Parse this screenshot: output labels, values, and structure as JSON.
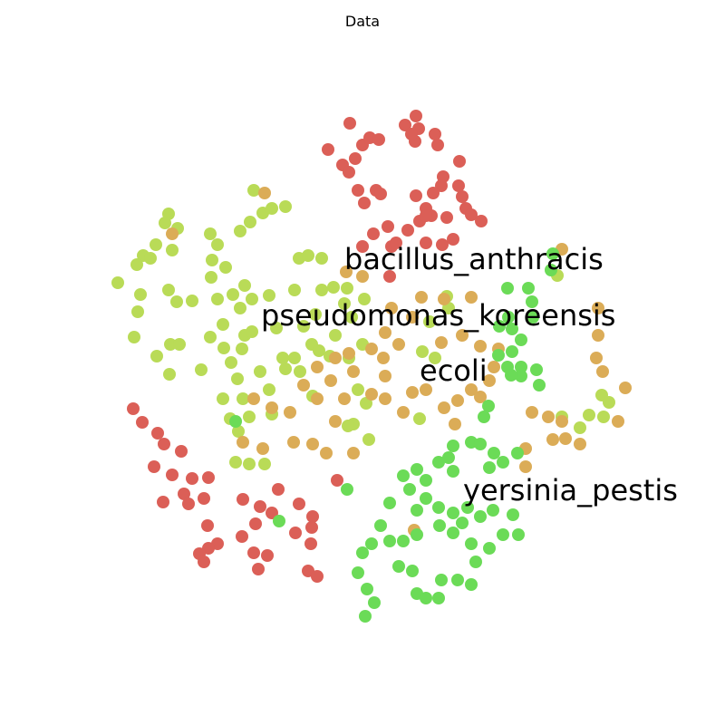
{
  "chart_data": {
    "type": "scatter",
    "title": "Data",
    "xlabel": "",
    "ylabel": "",
    "axes_visible": false,
    "grid": false,
    "annotations": [
      {
        "text": "bacillus_anthracis",
        "x": 380,
        "y": 288
      },
      {
        "text": "pseudomonas_koreensis",
        "x": 288,
        "y": 350
      },
      {
        "text": "ecoli",
        "x": 463,
        "y": 411
      },
      {
        "text": "yersinia_pestis",
        "x": 511,
        "y": 543
      }
    ],
    "series": [
      {
        "color": "#db5f57",
        "points": [
          [
            386,
            136
          ],
          [
            400,
            160
          ],
          [
            362,
            165
          ],
          [
            378,
            182
          ],
          [
            385,
            190
          ],
          [
            392,
            175
          ],
          [
            408,
            152
          ],
          [
            418,
            154
          ],
          [
            447,
            138
          ],
          [
            459,
            128
          ],
          [
            462,
            142
          ],
          [
            480,
            148
          ],
          [
            483,
            160
          ],
          [
            458,
            156
          ],
          [
            454,
            148
          ],
          [
            489,
            195
          ],
          [
            487,
            205
          ],
          [
            507,
            178
          ],
          [
            506,
            205
          ],
          [
            510,
            217
          ],
          [
            478,
            213
          ],
          [
            470,
            230
          ],
          [
            476,
            238
          ],
          [
            459,
            216
          ],
          [
            463,
            244
          ],
          [
            493,
            240
          ],
          [
            514,
            230
          ],
          [
            520,
            237
          ],
          [
            531,
            244
          ],
          [
            415,
            210
          ],
          [
            395,
            210
          ],
          [
            402,
            224
          ],
          [
            420,
            214
          ],
          [
            428,
            250
          ],
          [
            412,
            258
          ],
          [
            400,
            272
          ],
          [
            432,
            272
          ],
          [
            450,
            254
          ],
          [
            470,
            238
          ],
          [
            488,
            270
          ],
          [
            500,
            264
          ],
          [
            470,
            268
          ],
          [
            437,
            268
          ],
          [
            430,
            305
          ],
          [
            147,
            451
          ],
          [
            157,
            466
          ],
          [
            174,
            478
          ],
          [
            181,
            490
          ],
          [
            170,
            515
          ],
          [
            200,
            498
          ],
          [
            190,
            524
          ],
          [
            212,
            528
          ],
          [
            230,
            527
          ],
          [
            203,
            545
          ],
          [
            208,
            556
          ],
          [
            225,
            550
          ],
          [
            180,
            554
          ],
          [
            268,
            551
          ],
          [
            287,
            559
          ],
          [
            307,
            540
          ],
          [
            282,
            578
          ],
          [
            300,
            566
          ],
          [
            330,
            556
          ],
          [
            345,
            570
          ],
          [
            344,
            582
          ],
          [
            326,
            588
          ],
          [
            229,
            580
          ],
          [
            240,
            600
          ],
          [
            230,
            605
          ],
          [
            220,
            611
          ],
          [
            225,
            620
          ],
          [
            267,
            592
          ],
          [
            280,
            610
          ],
          [
            285,
            628
          ],
          [
            295,
            613
          ],
          [
            343,
            600
          ],
          [
            340,
            630
          ],
          [
            350,
            636
          ],
          [
            372,
            530
          ]
        ]
      },
      {
        "color": "#b9db57",
        "points": [
          [
            186,
            236
          ],
          [
            182,
            246
          ],
          [
            196,
            252
          ],
          [
            172,
            270
          ],
          [
            158,
            282
          ],
          [
            166,
            285
          ],
          [
            190,
            276
          ],
          [
            130,
            312
          ],
          [
            151,
            292
          ],
          [
            155,
            325
          ],
          [
            152,
            344
          ],
          [
            148,
            372
          ],
          [
            186,
            320
          ],
          [
            195,
            333
          ],
          [
            212,
            332
          ],
          [
            188,
            380
          ],
          [
            173,
            393
          ],
          [
            198,
            380
          ],
          [
            187,
            413
          ],
          [
            222,
            408
          ],
          [
            232,
            258
          ],
          [
            240,
            270
          ],
          [
            234,
            287
          ],
          [
            233,
            306
          ],
          [
            249,
            295
          ],
          [
            240,
            330
          ],
          [
            257,
            325
          ],
          [
            270,
            315
          ],
          [
            265,
            340
          ],
          [
            278,
            330
          ],
          [
            297,
            326
          ],
          [
            246,
            358
          ],
          [
            232,
            372
          ],
          [
            247,
            384
          ],
          [
            255,
            400
          ],
          [
            267,
            385
          ],
          [
            270,
            370
          ],
          [
            278,
            366
          ],
          [
            305,
            362
          ],
          [
            280,
            210
          ],
          [
            290,
            235
          ],
          [
            300,
            230
          ],
          [
            315,
            228
          ],
          [
            276,
            245
          ],
          [
            265,
            255
          ],
          [
            330,
            285
          ],
          [
            340,
            282
          ],
          [
            355,
            285
          ],
          [
            325,
            320
          ],
          [
            355,
            320
          ],
          [
            368,
            317
          ],
          [
            383,
            318
          ],
          [
            380,
            335
          ],
          [
            402,
            330
          ],
          [
            348,
            347
          ],
          [
            335,
            360
          ],
          [
            344,
            380
          ],
          [
            352,
            387
          ],
          [
            325,
            395
          ],
          [
            315,
            407
          ],
          [
            287,
            410
          ],
          [
            262,
            418
          ],
          [
            297,
            430
          ],
          [
            268,
            440
          ],
          [
            246,
            440
          ],
          [
            300,
            457
          ],
          [
            275,
            460
          ],
          [
            254,
            462
          ],
          [
            263,
            476
          ],
          [
            260,
            510
          ],
          [
            275,
            512
          ],
          [
            292,
            512
          ],
          [
            312,
            395
          ],
          [
            331,
            410
          ],
          [
            345,
            437
          ],
          [
            395,
            430
          ],
          [
            404,
            445
          ],
          [
            407,
            485
          ],
          [
            390,
            468
          ],
          [
            400,
            380
          ],
          [
            385,
            395
          ],
          [
            388,
            350
          ],
          [
            370,
            370
          ],
          [
            364,
            393
          ],
          [
            384,
            470
          ],
          [
            493,
            327
          ],
          [
            495,
            340
          ],
          [
            474,
            355
          ],
          [
            466,
            388
          ],
          [
            480,
            395
          ],
          [
            463,
            462
          ],
          [
            615,
            304
          ],
          [
            620,
            460
          ],
          [
            640,
            472
          ],
          [
            650,
            458
          ],
          [
            664,
            436
          ],
          [
            666,
            460
          ],
          [
            672,
            444
          ]
        ]
      },
      {
        "color": "#dbac57",
        "points": [
          [
            292,
            213
          ],
          [
            190,
            258
          ],
          [
            382,
            300
          ],
          [
            400,
            305
          ],
          [
            465,
            328
          ],
          [
            490,
            330
          ],
          [
            520,
            328
          ],
          [
            432,
            340
          ],
          [
            455,
            350
          ],
          [
            425,
            367
          ],
          [
            440,
            380
          ],
          [
            410,
            385
          ],
          [
            385,
            390
          ],
          [
            370,
            395
          ],
          [
            350,
            405
          ],
          [
            335,
            425
          ],
          [
            350,
            440
          ],
          [
            365,
            420
          ],
          [
            380,
            440
          ],
          [
            410,
            435
          ],
          [
            425,
            440
          ],
          [
            445,
            455
          ],
          [
            455,
            433
          ],
          [
            470,
            430
          ],
          [
            490,
            450
          ],
          [
            505,
            442
          ],
          [
            520,
            430
          ],
          [
            540,
            420
          ],
          [
            530,
            438
          ],
          [
            545,
            405
          ],
          [
            550,
            385
          ],
          [
            530,
            382
          ],
          [
            510,
            370
          ],
          [
            487,
            378
          ],
          [
            390,
            410
          ],
          [
            300,
            450
          ],
          [
            280,
            440
          ],
          [
            268,
            488
          ],
          [
            290,
            495
          ],
          [
            320,
            455
          ],
          [
            324,
            488
          ],
          [
            345,
            490
          ],
          [
            360,
            500
          ],
          [
            370,
            465
          ],
          [
            390,
            500
          ],
          [
            423,
            395
          ],
          [
            425,
            415
          ],
          [
            457,
            585
          ],
          [
            502,
            468
          ],
          [
            580,
            495
          ],
          [
            580,
            515
          ],
          [
            587,
            455
          ],
          [
            605,
            460
          ],
          [
            620,
            465
          ],
          [
            624,
            484
          ],
          [
            640,
            490
          ],
          [
            658,
            395
          ],
          [
            665,
            410
          ],
          [
            660,
            370
          ],
          [
            660,
            340
          ],
          [
            682,
            465
          ],
          [
            690,
            428
          ],
          [
            610,
            485
          ],
          [
            620,
            275
          ]
        ]
      },
      {
        "color": "#6bdb57",
        "points": [
          [
            560,
            318
          ],
          [
            583,
            318
          ],
          [
            587,
            333
          ],
          [
            588,
            350
          ],
          [
            561,
            350
          ],
          [
            551,
            360
          ],
          [
            565,
            363
          ],
          [
            575,
            375
          ],
          [
            565,
            388
          ],
          [
            550,
            392
          ],
          [
            560,
            405
          ],
          [
            575,
            405
          ],
          [
            575,
            415
          ],
          [
            592,
            408
          ],
          [
            595,
            425
          ],
          [
            539,
            448
          ],
          [
            534,
            460
          ],
          [
            520,
            488
          ],
          [
            500,
            492
          ],
          [
            495,
            505
          ],
          [
            530,
            490
          ],
          [
            545,
            500
          ],
          [
            540,
            516
          ],
          [
            555,
            510
          ],
          [
            571,
            500
          ],
          [
            500,
            520
          ],
          [
            484,
            510
          ],
          [
            460,
            518
          ],
          [
            445,
            525
          ],
          [
            470,
            530
          ],
          [
            452,
            540
          ],
          [
            430,
            555
          ],
          [
            460,
            563
          ],
          [
            470,
            550
          ],
          [
            484,
            560
          ],
          [
            500,
            566
          ],
          [
            516,
            560
          ],
          [
            530,
            570
          ],
          [
            544,
            563
          ],
          [
            566,
            568
          ],
          [
            555,
            590
          ],
          [
            572,
            590
          ],
          [
            510,
            577
          ],
          [
            500,
            588
          ],
          [
            485,
            580
          ],
          [
            460,
            590
          ],
          [
            445,
            597
          ],
          [
            430,
            597
          ],
          [
            420,
            580
          ],
          [
            410,
            600
          ],
          [
            400,
            610
          ],
          [
            395,
            632
          ],
          [
            405,
            650
          ],
          [
            413,
            665
          ],
          [
            403,
            680
          ],
          [
            440,
            625
          ],
          [
            455,
            630
          ],
          [
            460,
            655
          ],
          [
            470,
            660
          ],
          [
            505,
            640
          ],
          [
            520,
            645
          ],
          [
            525,
            620
          ],
          [
            540,
            605
          ],
          [
            487,
            640
          ],
          [
            484,
            660
          ],
          [
            520,
            600
          ],
          [
            260,
            465
          ],
          [
            308,
            575
          ],
          [
            383,
            540
          ],
          [
            610,
            280
          ],
          [
            608,
            298
          ],
          [
            564,
            414
          ]
        ]
      }
    ]
  }
}
